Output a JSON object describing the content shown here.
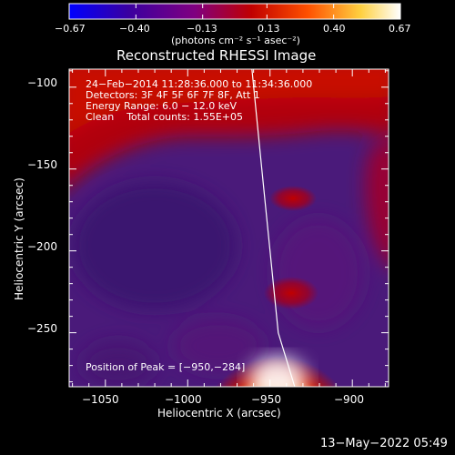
{
  "chart_data": {
    "type": "heatmap",
    "title": "Reconstructed RHESSI Image",
    "xlabel": "Heliocentric X (arcsec)",
    "ylabel": "Heliocentric Y (arcsec)",
    "xlim": [
      -1072,
      -878
    ],
    "ylim": [
      -283,
      -89
    ],
    "x_ticks": [
      -1050,
      -1000,
      -950,
      -900
    ],
    "x_tick_labels": [
      "−1050",
      "−1000",
      "−950",
      "−900"
    ],
    "y_ticks": [
      -100,
      -150,
      -200,
      -250
    ],
    "y_tick_labels": [
      "−100",
      "−150",
      "−200",
      "−250"
    ],
    "colorbar": {
      "range": [
        -0.67,
        0.67
      ],
      "ticks": [
        -0.67,
        -0.4,
        -0.13,
        0.13,
        0.4,
        0.67
      ],
      "tick_labels": [
        "−0.67",
        "−0.40",
        "−0.13",
        "0.13",
        "0.40",
        "0.67"
      ],
      "units_label": "(photons cm⁻² s⁻¹ asec⁻²)",
      "colors": [
        "#0000ff",
        "#4b0082",
        "#800080",
        "#c00000",
        "#ff6000",
        "#ffff80",
        "#ffffff"
      ]
    },
    "annotations": [
      "24−Feb−2014 11:28:36.000 to 11:34:36.000",
      "Detectors: 3F 4F 5F 6F 7F 8F, Att 1",
      "Energy Range: 6.0 − 12.0 keV",
      "Clean    Total counts: 1.55E+05"
    ],
    "peak_label": "Position of Peak = [−950,−284]",
    "peak": [
      -950,
      -284
    ],
    "limb_curve": [
      [
        -961,
        -89
      ],
      [
        -955,
        -150
      ],
      [
        -950,
        -200
      ],
      [
        -945,
        -250
      ],
      [
        -935,
        -283
      ]
    ]
  },
  "footer": {
    "date": "13−May−2022 05:49"
  }
}
